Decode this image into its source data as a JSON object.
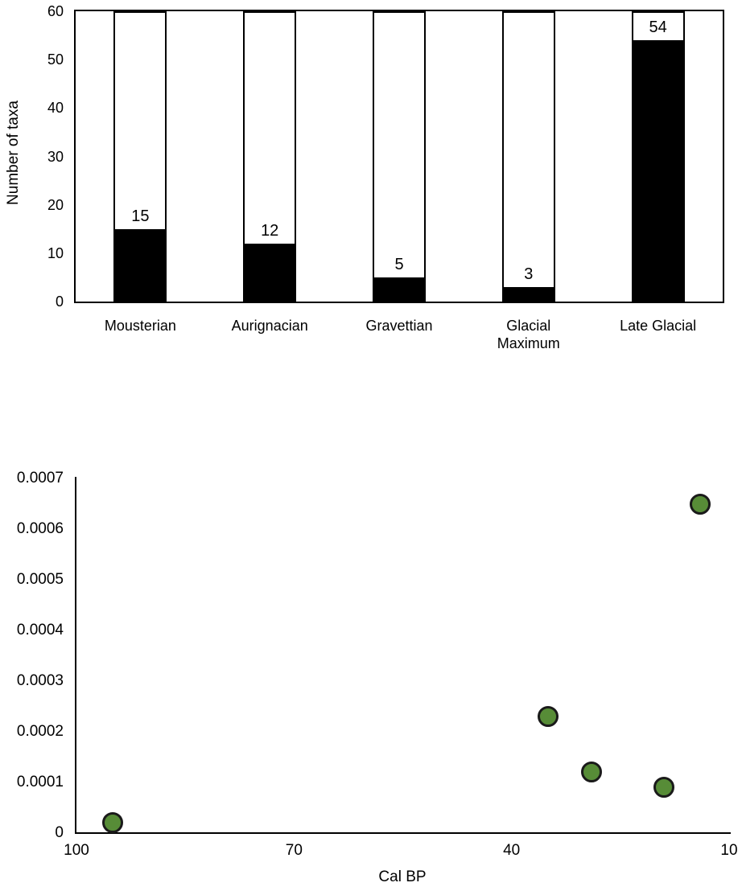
{
  "page": {
    "background": "#ffffff"
  },
  "chart_data": [
    {
      "type": "bar",
      "title": "",
      "ylabel": "Number of taxa",
      "xlabel": "",
      "ylim": [
        0,
        60
      ],
      "yticks": [
        0,
        10,
        20,
        30,
        40,
        50,
        60
      ],
      "categories": [
        "Mousterian",
        "Aurignacian",
        "Gravettian",
        "Glacial Maximum",
        "Late Glacial"
      ],
      "values": [
        15,
        12,
        5,
        3,
        54
      ],
      "data_labels": [
        "15",
        "12",
        "5",
        "3",
        "54"
      ],
      "bar_fill": "#000000",
      "frame_fill": "#ffffff",
      "border_color": "#000000",
      "grid": false,
      "legend": "none"
    },
    {
      "type": "scatter",
      "title": "",
      "xlabel": "Cal BP",
      "ylabel": "",
      "x_axis_reversed": true,
      "xlim": [
        100,
        10
      ],
      "ylim": [
        0,
        0.0007
      ],
      "xticks": [
        "100",
        "70",
        "40",
        "10"
      ],
      "yticks": [
        "0.0007",
        "0.0006",
        "0.0005",
        "0.0004",
        "0.0003",
        "0.0002",
        "0.0001",
        "0"
      ],
      "points": [
        {
          "x": 95,
          "y": 2e-05
        },
        {
          "x": 35,
          "y": 0.00023
        },
        {
          "x": 29,
          "y": 0.00012
        },
        {
          "x": 19,
          "y": 9e-05
        },
        {
          "x": 14,
          "y": 0.00065
        }
      ],
      "marker_fill": "#578c37",
      "marker_border": "#1a1a1a",
      "grid": false,
      "legend": "none"
    }
  ]
}
